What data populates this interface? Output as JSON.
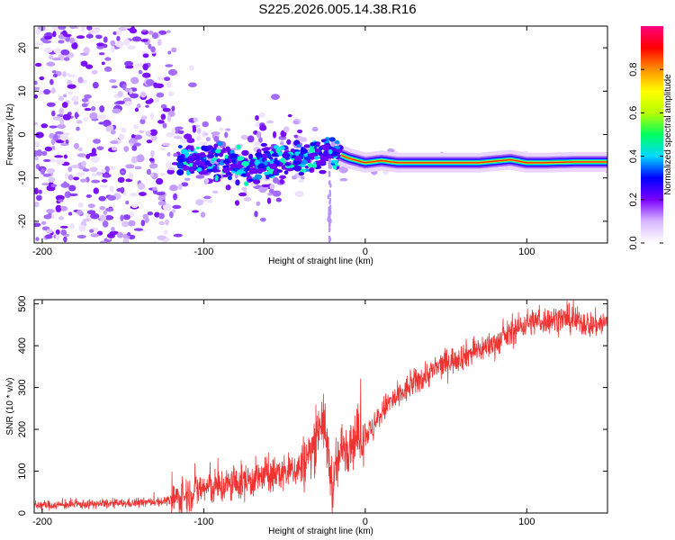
{
  "title": "S225.2026.005.14.38.R16",
  "chart_data": [
    {
      "type": "heatmap",
      "xlabel": "Height of straight line (km)",
      "ylabel": "Frequency (Hz)",
      "xlim": [
        -205,
        150
      ],
      "ylim": [
        -25,
        25
      ],
      "x_ticks": [
        -200,
        -100,
        0,
        100
      ],
      "y_ticks": [
        -20,
        -10,
        0,
        10,
        20
      ],
      "colorbar": {
        "label": "Normalized spectral amplitude",
        "range": [
          0,
          1
        ],
        "ticks": [
          0.0,
          0.2,
          0.4,
          0.6,
          0.8
        ],
        "tick_labels": [
          "0.0",
          "0.2",
          "0.4",
          "0.6",
          "0.8"
        ],
        "colors": [
          "#ffffff",
          "#d8b8ff",
          "#7a00ff",
          "#0000ff",
          "#00d8ff",
          "#00ff60",
          "#b8ff00",
          "#ffff00",
          "#ff9000",
          "#ff0000",
          "#ff0080"
        ]
      },
      "ridge_track": {
        "x": [
          -110,
          -100,
          -90,
          -80,
          -70,
          -60,
          -50,
          -40,
          -30,
          -20,
          -10,
          0,
          10,
          20,
          30,
          50,
          70,
          90,
          100,
          110,
          130,
          150
        ],
        "frequency": [
          -5.5,
          -6,
          -6.5,
          -7,
          -7.5,
          -6.5,
          -5.5,
          -5,
          -4.5,
          -4,
          -5.5,
          -6.5,
          -6,
          -6.5,
          -6.5,
          -6.5,
          -6.5,
          -5.8,
          -6.5,
          -6.5,
          -6.3,
          -6.3
        ]
      },
      "noise_extent": {
        "x": [
          -205,
          -150,
          -120,
          -100,
          -80,
          -60,
          -40,
          -20,
          0,
          50,
          150
        ],
        "frequency_spread": [
          24,
          24,
          23,
          12,
          10,
          12,
          8,
          5,
          2.5,
          2,
          2
        ]
      }
    },
    {
      "type": "line",
      "xlabel": "Height of straight line (km)",
      "ylabel": "SNR (10 * v/v)",
      "xlim": [
        -205,
        150
      ],
      "ylim": [
        0,
        510
      ],
      "x_ticks": [
        -200,
        -100,
        0,
        100
      ],
      "y_ticks": [
        0,
        100,
        200,
        300,
        400,
        500
      ],
      "color": "#ee3333",
      "series": [
        {
          "x": [
            -205,
            -180,
            -160,
            -140,
            -120,
            -110,
            -100,
            -90,
            -80,
            -70,
            -60,
            -50,
            -40,
            -35,
            -30,
            -28,
            -25,
            -22,
            -20,
            -18,
            -15,
            -10,
            -5,
            0,
            5,
            10,
            15,
            20,
            30,
            40,
            50,
            60,
            70,
            80,
            90,
            100,
            110,
            120,
            130,
            140,
            150
          ],
          "values": [
            18,
            20,
            22,
            24,
            30,
            45,
            60,
            62,
            70,
            80,
            90,
            95,
            110,
            135,
            180,
            230,
            200,
            110,
            60,
            100,
            150,
            170,
            180,
            190,
            200,
            240,
            265,
            275,
            310,
            335,
            360,
            375,
            390,
            405,
            430,
            455,
            460,
            465,
            460,
            450,
            455
          ]
        }
      ]
    }
  ]
}
